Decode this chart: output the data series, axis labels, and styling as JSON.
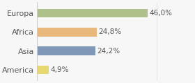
{
  "categories": [
    "Europa",
    "Africa",
    "Asia",
    "America"
  ],
  "values": [
    46.0,
    24.8,
    24.2,
    4.9
  ],
  "labels": [
    "46,0%",
    "24,8%",
    "24,2%",
    "4,9%"
  ],
  "bar_colors": [
    "#afc18a",
    "#e8b87c",
    "#8098b8",
    "#e8d870"
  ],
  "background_color": "#f7f7f7",
  "xlim": [
    0,
    65
  ],
  "bar_height": 0.45,
  "label_fontsize": 7.5,
  "tick_fontsize": 8.0
}
